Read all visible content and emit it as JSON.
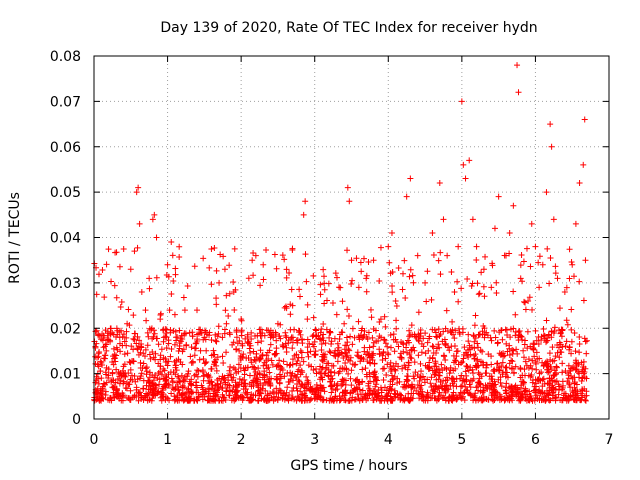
{
  "chart_data": {
    "type": "scatter",
    "title": "Day 139 of 2020, Rate Of TEC Index for receiver hydn",
    "xlabel": "GPS time / hours",
    "ylabel": "ROTI / TECUs",
    "xlim": [
      0,
      7
    ],
    "ylim": [
      0,
      0.08
    ],
    "xticks": [
      0,
      1,
      2,
      3,
      4,
      5,
      6,
      7
    ],
    "xtick_labels": [
      "0",
      "1",
      "2",
      "3",
      "4",
      "5",
      "6",
      "7"
    ],
    "yticks": [
      0,
      0.01,
      0.02,
      0.03,
      0.04,
      0.05,
      0.06,
      0.07,
      0.08
    ],
    "ytick_labels": [
      "0",
      "0.01",
      "0.02",
      "0.03",
      "0.04",
      "0.05",
      "0.06",
      "0.07",
      "0.08"
    ],
    "grid": true,
    "marker": "plus",
    "color": "#ff0000",
    "series": [
      {
        "name": "ROTI",
        "points": [
          [
            0.05,
            0.012
          ],
          [
            0.1,
            0.009
          ],
          [
            0.15,
            0.016
          ],
          [
            0.2,
            0.011
          ],
          [
            0.25,
            0.007
          ],
          [
            0.3,
            0.014
          ],
          [
            0.35,
            0.018
          ],
          [
            0.4,
            0.01
          ],
          [
            0.45,
            0.021
          ],
          [
            0.5,
            0.033
          ],
          [
            0.55,
            0.037
          ],
          [
            0.58,
            0.05
          ],
          [
            0.6,
            0.051
          ],
          [
            0.62,
            0.043
          ],
          [
            0.65,
            0.028
          ],
          [
            0.7,
            0.024
          ],
          [
            0.75,
            0.031
          ],
          [
            0.8,
            0.044
          ],
          [
            0.82,
            0.045
          ],
          [
            0.85,
            0.04
          ],
          [
            0.9,
            0.022
          ],
          [
            0.95,
            0.018
          ],
          [
            1.0,
            0.034
          ],
          [
            1.05,
            0.039
          ],
          [
            1.1,
            0.023
          ],
          [
            1.15,
            0.015
          ],
          [
            1.2,
            0.012
          ],
          [
            1.3,
            0.019
          ],
          [
            1.4,
            0.024
          ],
          [
            1.5,
            0.018
          ],
          [
            1.6,
            0.014
          ],
          [
            1.7,
            0.03
          ],
          [
            1.8,
            0.021
          ],
          [
            1.9,
            0.028
          ],
          [
            2.0,
            0.022
          ],
          [
            2.1,
            0.017
          ],
          [
            2.15,
            0.035
          ],
          [
            2.2,
            0.036
          ],
          [
            2.3,
            0.034
          ],
          [
            2.4,
            0.018
          ],
          [
            2.5,
            0.021
          ],
          [
            2.6,
            0.019
          ],
          [
            2.7,
            0.025
          ],
          [
            2.8,
            0.027
          ],
          [
            2.85,
            0.045
          ],
          [
            2.87,
            0.048
          ],
          [
            2.9,
            0.022
          ],
          [
            3.0,
            0.017
          ],
          [
            3.1,
            0.013
          ],
          [
            3.2,
            0.019
          ],
          [
            3.3,
            0.023
          ],
          [
            3.4,
            0.021
          ],
          [
            3.45,
            0.051
          ],
          [
            3.47,
            0.048
          ],
          [
            3.5,
            0.035
          ],
          [
            3.6,
            0.029
          ],
          [
            3.7,
            0.031
          ],
          [
            3.8,
            0.035
          ],
          [
            3.9,
            0.022
          ],
          [
            4.0,
            0.038
          ],
          [
            4.05,
            0.041
          ],
          [
            4.1,
            0.026
          ],
          [
            4.2,
            0.032
          ],
          [
            4.25,
            0.049
          ],
          [
            4.3,
            0.053
          ],
          [
            4.4,
            0.036
          ],
          [
            4.5,
            0.03
          ],
          [
            4.6,
            0.041
          ],
          [
            4.7,
            0.052
          ],
          [
            4.75,
            0.044
          ],
          [
            4.8,
            0.036
          ],
          [
            4.9,
            0.028
          ],
          [
            4.95,
            0.038
          ],
          [
            5.0,
            0.07
          ],
          [
            5.02,
            0.056
          ],
          [
            5.05,
            0.053
          ],
          [
            5.1,
            0.057
          ],
          [
            5.15,
            0.044
          ],
          [
            5.2,
            0.038
          ],
          [
            5.3,
            0.033
          ],
          [
            5.4,
            0.029
          ],
          [
            5.45,
            0.042
          ],
          [
            5.5,
            0.049
          ],
          [
            5.6,
            0.036
          ],
          [
            5.65,
            0.041
          ],
          [
            5.7,
            0.047
          ],
          [
            5.75,
            0.078
          ],
          [
            5.77,
            0.072
          ],
          [
            5.8,
            0.031
          ],
          [
            5.9,
            0.026
          ],
          [
            5.95,
            0.043
          ],
          [
            6.0,
            0.038
          ],
          [
            6.05,
            0.029
          ],
          [
            6.1,
            0.034
          ],
          [
            6.15,
            0.05
          ],
          [
            6.2,
            0.065
          ],
          [
            6.22,
            0.06
          ],
          [
            6.25,
            0.044
          ],
          [
            6.3,
            0.031
          ],
          [
            6.4,
            0.028
          ],
          [
            6.5,
            0.034
          ],
          [
            6.55,
            0.043
          ],
          [
            6.6,
            0.052
          ],
          [
            6.65,
            0.056
          ],
          [
            6.67,
            0.066
          ],
          [
            6.68,
            0.035
          ]
        ]
      }
    ]
  }
}
